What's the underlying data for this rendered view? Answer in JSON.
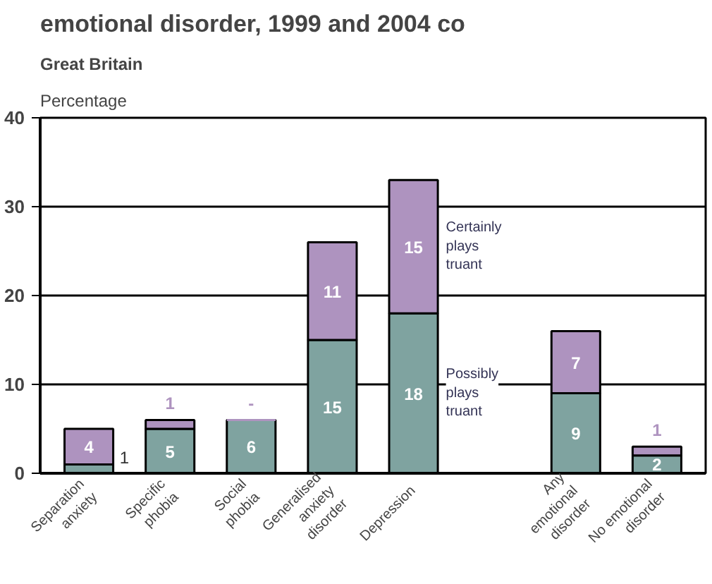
{
  "chart_data": {
    "type": "bar",
    "stacked": true,
    "title": "emotional disorder, 1999 and 2004 co",
    "subtitle": "Great Britain",
    "ylabel": "Percentage",
    "categories": [
      "Separation anxiety",
      "Specific phobia",
      "Social phobia",
      "Generalised anxiety disorder",
      "Depression",
      null,
      "Any emotional disorder",
      "No emotional disorder"
    ],
    "series": [
      {
        "name": "Possibly plays truant",
        "color": "#7fa3a0",
        "values": [
          1,
          5,
          6,
          15,
          18,
          null,
          9,
          2
        ],
        "value_labels": [
          "1",
          "5",
          "6",
          "15",
          "18",
          null,
          "9",
          "2"
        ]
      },
      {
        "name": "Certainly plays truant",
        "color": "#ae93bf",
        "values": [
          4,
          1,
          0,
          11,
          15,
          null,
          7,
          1
        ],
        "value_labels": [
          "4",
          "1",
          "-",
          "11",
          "15",
          null,
          "7",
          "1"
        ]
      }
    ],
    "ylim": [
      0,
      40
    ],
    "yticks": [
      0,
      10,
      20,
      30,
      40
    ],
    "grid": "y"
  }
}
